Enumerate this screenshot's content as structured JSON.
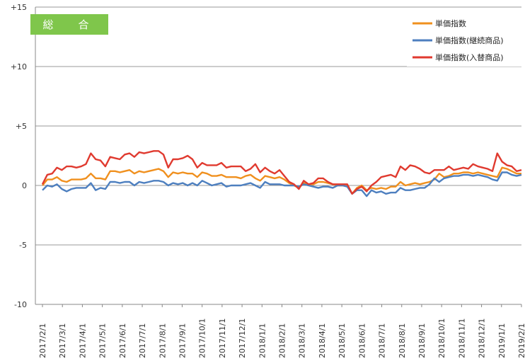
{
  "badge_label": "総　合",
  "chart_data": {
    "type": "line",
    "title": "",
    "xlabel": "",
    "ylabel": "",
    "ylim": [
      -10,
      15
    ],
    "y_ticks": [
      {
        "value": 15,
        "label": "+15"
      },
      {
        "value": 10,
        "label": "+10"
      },
      {
        "value": 5,
        "label": "+5"
      },
      {
        "value": 0,
        "label": "0"
      },
      {
        "value": -5,
        "label": "-5"
      },
      {
        "value": -10,
        "label": "-10"
      }
    ],
    "x_tick_labels": [
      "2017/2/1",
      "2017/3/1",
      "2017/4/1",
      "2017/5/1",
      "2017/6/1",
      "2017/7/1",
      "2017/8/1",
      "2017/9/1",
      "2017/10/1",
      "2017/11/1",
      "2017/12/1",
      "2018/1/1",
      "2018/2/1",
      "2018/3/1",
      "2018/4/1",
      "2018/5/1",
      "2018/6/1",
      "2018/7/1",
      "2018/8/1",
      "2018/9/1",
      "2018/10/1",
      "2018/11/1",
      "2018/12/1",
      "2019/1/1",
      "2019/2/1"
    ],
    "x": [
      "2017/2/1",
      "2017/2/8",
      "2017/2/15",
      "2017/2/22",
      "2017/3/1",
      "2017/3/8",
      "2017/3/15",
      "2017/3/22",
      "2017/4/1",
      "2017/4/8",
      "2017/4/15",
      "2017/4/22",
      "2017/5/1",
      "2017/5/8",
      "2017/5/15",
      "2017/5/22",
      "2017/6/1",
      "2017/6/8",
      "2017/6/15",
      "2017/6/22",
      "2017/7/1",
      "2017/7/8",
      "2017/7/15",
      "2017/7/22",
      "2017/8/1",
      "2017/8/8",
      "2017/8/15",
      "2017/8/22",
      "2017/9/1",
      "2017/9/8",
      "2017/9/15",
      "2017/9/22",
      "2017/10/1",
      "2017/10/8",
      "2017/10/15",
      "2017/10/22",
      "2017/11/1",
      "2017/11/8",
      "2017/11/15",
      "2017/11/22",
      "2017/12/1",
      "2017/12/8",
      "2017/12/15",
      "2017/12/22",
      "2018/1/1",
      "2018/1/8",
      "2018/1/15",
      "2018/1/22",
      "2018/2/1",
      "2018/2/8",
      "2018/2/15",
      "2018/2/22",
      "2018/3/1",
      "2018/3/8",
      "2018/3/15",
      "2018/3/22",
      "2018/4/1",
      "2018/4/8",
      "2018/4/15",
      "2018/4/22",
      "2018/5/1",
      "2018/5/8",
      "2018/5/15",
      "2018/5/22",
      "2018/6/1",
      "2018/6/8",
      "2018/6/15",
      "2018/6/22",
      "2018/7/1",
      "2018/7/8",
      "2018/7/15",
      "2018/7/22",
      "2018/8/1",
      "2018/8/8",
      "2018/8/15",
      "2018/8/22",
      "2018/9/1",
      "2018/9/8",
      "2018/9/15",
      "2018/9/22",
      "2018/10/1",
      "2018/10/8",
      "2018/10/15",
      "2018/10/22",
      "2018/11/1",
      "2018/11/8",
      "2018/11/15",
      "2018/11/22",
      "2018/12/1",
      "2018/12/8",
      "2018/12/15",
      "2018/12/22",
      "2019/1/1",
      "2019/1/8",
      "2019/1/15",
      "2019/1/22",
      "2019/2/1",
      "2019/2/8",
      "2019/2/15",
      "2019/2/22"
    ],
    "legend_position": "top-right",
    "grid": "horizontal",
    "series": [
      {
        "name": "単価指数",
        "color": "#f0901e",
        "values": [
          0.0,
          0.5,
          0.5,
          0.7,
          0.4,
          0.3,
          0.5,
          0.5,
          0.5,
          0.6,
          1.0,
          0.6,
          0.6,
          0.5,
          1.2,
          1.2,
          1.1,
          1.2,
          1.3,
          1.0,
          1.2,
          1.1,
          1.2,
          1.3,
          1.4,
          1.2,
          0.7,
          1.1,
          1.0,
          1.1,
          1.0,
          1.0,
          0.7,
          1.1,
          1.0,
          0.8,
          0.8,
          0.9,
          0.7,
          0.7,
          0.7,
          0.6,
          0.8,
          0.9,
          0.6,
          0.4,
          0.8,
          0.7,
          0.6,
          0.7,
          0.5,
          0.2,
          0.0,
          -0.2,
          0.2,
          0.1,
          0.1,
          0.3,
          0.3,
          0.2,
          0.1,
          0.0,
          0.0,
          0.0,
          -0.7,
          -0.2,
          0.0,
          -0.4,
          -0.2,
          -0.3,
          -0.2,
          -0.3,
          -0.1,
          -0.1,
          0.3,
          0.0,
          0.1,
          0.2,
          0.1,
          0.2,
          0.3,
          0.5,
          1.0,
          0.7,
          0.8,
          1.0,
          1.0,
          1.1,
          1.1,
          1.0,
          1.1,
          1.0,
          0.9,
          0.8,
          0.7,
          1.5,
          1.4,
          1.2,
          1.0,
          1.0
        ]
      },
      {
        "name": "単価指数(継続商品)",
        "color": "#4d7fbf",
        "values": [
          -0.4,
          0.0,
          -0.1,
          0.1,
          -0.3,
          -0.5,
          -0.3,
          -0.2,
          -0.2,
          -0.2,
          0.2,
          -0.4,
          -0.2,
          -0.3,
          0.3,
          0.3,
          0.2,
          0.3,
          0.3,
          0.0,
          0.3,
          0.2,
          0.3,
          0.4,
          0.4,
          0.3,
          0.0,
          0.2,
          0.1,
          0.2,
          0.0,
          0.2,
          0.0,
          0.4,
          0.2,
          0.0,
          0.1,
          0.2,
          -0.1,
          0.0,
          0.0,
          0.0,
          0.1,
          0.2,
          0.0,
          -0.2,
          0.3,
          0.1,
          0.1,
          0.1,
          0.0,
          0.0,
          0.0,
          -0.1,
          0.1,
          0.0,
          -0.1,
          -0.2,
          -0.1,
          -0.1,
          -0.2,
          0.0,
          0.0,
          -0.1,
          -0.7,
          -0.4,
          -0.4,
          -0.9,
          -0.4,
          -0.6,
          -0.5,
          -0.7,
          -0.6,
          -0.6,
          -0.2,
          -0.4,
          -0.4,
          -0.3,
          -0.2,
          -0.2,
          0.1,
          0.6,
          0.3,
          0.6,
          0.7,
          0.8,
          0.8,
          0.9,
          0.9,
          0.8,
          0.9,
          0.8,
          0.7,
          0.5,
          0.4,
          1.1,
          1.1,
          0.9,
          0.8,
          0.9
        ]
      },
      {
        "name": "単価指数(入替商品)",
        "color": "#e03a2f",
        "values": [
          0.1,
          0.9,
          1.0,
          1.5,
          1.3,
          1.6,
          1.6,
          1.5,
          1.6,
          1.8,
          2.7,
          2.2,
          2.1,
          1.6,
          2.4,
          2.3,
          2.2,
          2.6,
          2.7,
          2.4,
          2.8,
          2.7,
          2.8,
          2.9,
          2.9,
          2.6,
          1.5,
          2.2,
          2.2,
          2.3,
          2.5,
          2.2,
          1.5,
          1.9,
          1.7,
          1.7,
          1.7,
          1.9,
          1.5,
          1.6,
          1.6,
          1.6,
          1.2,
          1.4,
          1.8,
          1.1,
          1.5,
          1.2,
          1.0,
          1.3,
          0.8,
          0.3,
          0.1,
          -0.3,
          0.4,
          0.1,
          0.2,
          0.6,
          0.6,
          0.3,
          0.1,
          0.1,
          0.1,
          0.1,
          -0.7,
          -0.3,
          -0.1,
          -0.5,
          0.0,
          0.3,
          0.7,
          0.8,
          0.9,
          0.7,
          1.6,
          1.3,
          1.7,
          1.6,
          1.4,
          1.1,
          1.0,
          1.3,
          1.3,
          1.3,
          1.6,
          1.3,
          1.4,
          1.5,
          1.4,
          1.8,
          1.6,
          1.5,
          1.4,
          1.2,
          2.7,
          2.0,
          1.7,
          1.6,
          1.2,
          1.3
        ]
      }
    ]
  }
}
